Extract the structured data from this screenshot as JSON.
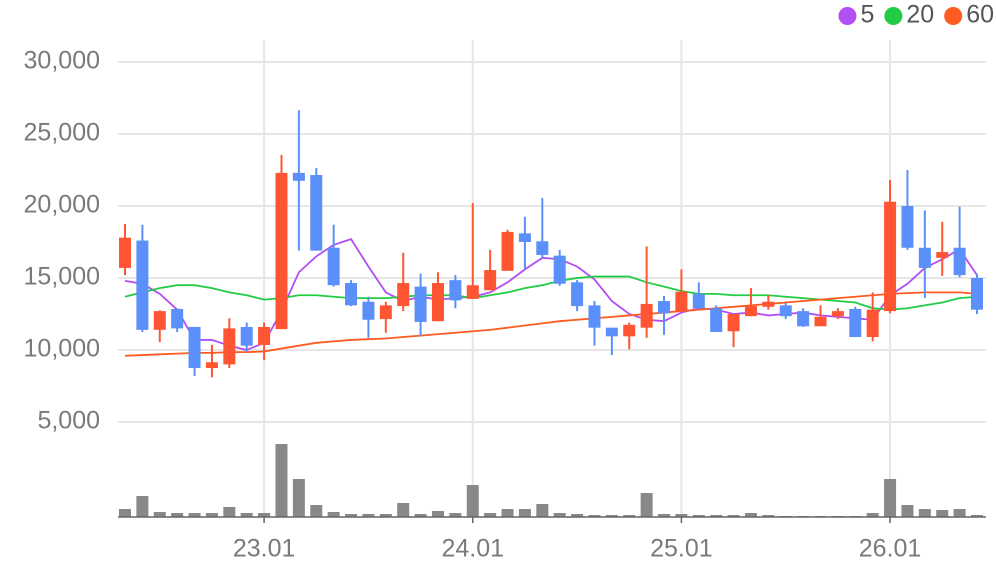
{
  "chart_data": {
    "type": "candlestick",
    "categories": [
      null,
      null,
      null,
      null,
      null,
      null,
      null,
      null,
      "23.01",
      null,
      null,
      null,
      null,
      null,
      null,
      null,
      null,
      null,
      null,
      null,
      "24.01",
      null,
      null,
      null,
      null,
      null,
      null,
      null,
      null,
      null,
      null,
      null,
      "25.01",
      null,
      null,
      null,
      null,
      null,
      null,
      null,
      null,
      null,
      null,
      null,
      "26.01",
      null,
      null,
      null,
      null,
      null
    ],
    "open": [
      15700,
      17600,
      11400,
      12850,
      11600,
      8750,
      9000,
      11600,
      10350,
      11450,
      22300,
      22150,
      17100,
      14650,
      13350,
      12150,
      13050,
      14400,
      12000,
      14850,
      13550,
      14150,
      15500,
      18100,
      17550,
      16550,
      14700,
      13100,
      11550,
      10950,
      11550,
      13400,
      12700,
      13900,
      12900,
      11300,
      12350,
      13000,
      13100,
      12700,
      11650,
      12350,
      12850,
      10900,
      12700,
      20000,
      17100,
      16400,
      17100,
      15000
    ],
    "high": [
      18750,
      18700,
      12750,
      12900,
      11600,
      10350,
      12200,
      11900,
      11900,
      23550,
      26650,
      22650,
      18700,
      14850,
      13700,
      13350,
      16750,
      15300,
      15400,
      15200,
      20200,
      16950,
      18350,
      19250,
      20550,
      16950,
      14850,
      13400,
      11550,
      11900,
      17200,
      13750,
      15600,
      14700,
      13100,
      12500,
      14300,
      13800,
      13250,
      12900,
      13100,
      12900,
      13000,
      14000,
      21800,
      22500,
      19700,
      18900,
      19950,
      15300
    ],
    "low": [
      15200,
      11250,
      10550,
      11250,
      8200,
      8100,
      8750,
      9850,
      9300,
      11450,
      16900,
      16900,
      14400,
      13050,
      10850,
      11200,
      12700,
      10950,
      12000,
      12900,
      13550,
      14150,
      15500,
      15600,
      16400,
      14450,
      12700,
      10300,
      9650,
      10050,
      10850,
      11050,
      12700,
      12800,
      11250,
      10200,
      12350,
      12800,
      12150,
      11600,
      11650,
      12150,
      10900,
      10600,
      12550,
      16950,
      13600,
      15150,
      15050,
      12500
    ],
    "close": [
      17800,
      11400,
      12700,
      11500,
      8750,
      9150,
      11500,
      10300,
      11600,
      22300,
      21750,
      16900,
      14500,
      13100,
      12100,
      13100,
      14650,
      11950,
      14650,
      13450,
      14500,
      15550,
      18200,
      17500,
      16600,
      14600,
      13050,
      11550,
      10950,
      11750,
      13200,
      12550,
      14050,
      12900,
      11250,
      12500,
      13050,
      13350,
      12350,
      11650,
      12300,
      12700,
      10900,
      12800,
      20300,
      17100,
      15700,
      16800,
      15200,
      12800
    ],
    "up_color": "#ff5533",
    "down_color": "#5b8ff9",
    "series": [
      {
        "name": "5",
        "color": "#b44ef2",
        "values": [
          14800,
          14600,
          13900,
          12800,
          10700,
          10700,
          10300,
          10000,
          10500,
          12700,
          15400,
          16500,
          17300,
          17700,
          15800,
          14000,
          13400,
          13700,
          13500,
          13600,
          13700,
          14000,
          14700,
          15600,
          16400,
          16300,
          15800,
          14900,
          13400,
          12500,
          12100,
          12000,
          12600,
          12900,
          12800,
          12500,
          12600,
          12400,
          12500,
          12600,
          12400,
          12300,
          12200,
          12100,
          13800,
          14600,
          15700,
          16300,
          17000,
          15200
        ]
      },
      {
        "name": "20",
        "color": "#22cc44",
        "values": [
          13700,
          14000,
          14300,
          14500,
          14500,
          14300,
          14000,
          13800,
          13500,
          13600,
          13800,
          13800,
          13700,
          13600,
          13600,
          13600,
          13700,
          13800,
          13800,
          13800,
          13600,
          13800,
          14000,
          14300,
          14500,
          14800,
          15000,
          15100,
          15100,
          15100,
          14700,
          14400,
          14100,
          13900,
          13900,
          13800,
          13800,
          13800,
          13700,
          13600,
          13500,
          13400,
          13300,
          12900,
          12800,
          12900,
          13100,
          13300,
          13600,
          13700
        ]
      },
      {
        "name": "60",
        "color": "#ff5a1f",
        "values": [
          9600,
          9650,
          9700,
          9750,
          9800,
          9800,
          9850,
          9850,
          9900,
          10100,
          10300,
          10500,
          10600,
          10700,
          10750,
          10800,
          10900,
          11000,
          11100,
          11200,
          11300,
          11400,
          11550,
          11700,
          11850,
          12000,
          12100,
          12200,
          12300,
          12400,
          12500,
          12600,
          12700,
          12800,
          12900,
          13000,
          13100,
          13200,
          13300,
          13400,
          13500,
          13600,
          13700,
          13800,
          13900,
          13950,
          14000,
          14000,
          14000,
          13900
        ]
      }
    ],
    "volume": [
      8,
      21,
      5,
      4,
      4,
      4,
      10,
      4,
      4,
      73,
      38,
      12,
      5,
      3,
      3,
      3,
      14,
      3,
      6,
      4,
      32,
      4,
      8,
      8,
      13,
      4,
      3,
      2,
      2,
      2,
      24,
      3,
      3,
      2,
      2,
      2,
      4,
      2,
      1,
      1,
      1,
      1,
      1,
      4,
      38,
      12,
      8,
      7,
      8,
      2
    ],
    "volume_color": "#888888",
    "ylim": [
      5000,
      30000
    ],
    "yticks": [
      {
        "value": 5000,
        "label": "5,000"
      },
      {
        "value": 10000,
        "label": "10,000"
      },
      {
        "value": 15000,
        "label": "15,000"
      },
      {
        "value": 20000,
        "label": "20,000"
      },
      {
        "value": 25000,
        "label": "25,000"
      },
      {
        "value": 30000,
        "label": "30,000"
      }
    ],
    "grid": true,
    "legend": "top-right"
  }
}
